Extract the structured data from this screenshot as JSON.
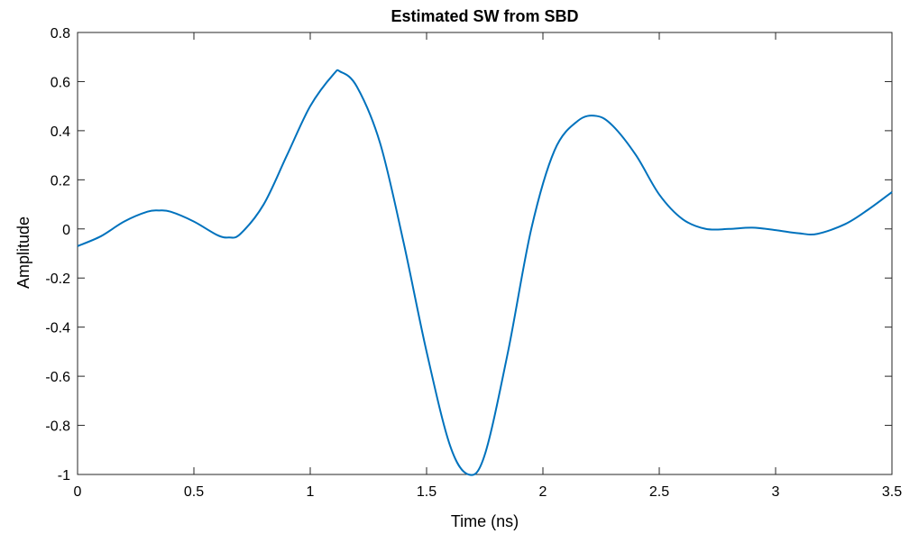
{
  "chart_data": {
    "type": "line",
    "title": "Estimated SW from SBD",
    "xlabel": "Time (ns)",
    "ylabel": "Amplitude",
    "xlim": [
      0,
      3.5
    ],
    "ylim": [
      -1,
      0.8
    ],
    "xticks": [
      0,
      0.5,
      1,
      1.5,
      2,
      2.5,
      3,
      3.5
    ],
    "xtick_labels": [
      "0",
      "0.5",
      "1",
      "1.5",
      "2",
      "2.5",
      "3",
      "3.5"
    ],
    "yticks": [
      -1,
      -0.8,
      -0.6,
      -0.4,
      -0.2,
      0,
      0.2,
      0.4,
      0.6,
      0.8
    ],
    "ytick_labels": [
      "-1",
      "-0.8",
      "-0.6",
      "-0.4",
      "-0.2",
      "0",
      "0.2",
      "0.4",
      "0.6",
      "0.8"
    ],
    "grid": false,
    "line_color": "#0072BD",
    "series": [
      {
        "x": [
          0,
          0.1,
          0.2,
          0.3,
          0.35,
          0.4,
          0.5,
          0.6,
          0.65,
          0.7,
          0.8,
          0.9,
          1.0,
          1.1,
          1.13,
          1.2,
          1.3,
          1.4,
          1.5,
          1.6,
          1.68,
          1.75,
          1.85,
          1.95,
          2.05,
          2.15,
          2.23,
          2.3,
          2.4,
          2.5,
          2.6,
          2.7,
          2.8,
          2.9,
          3.0,
          3.1,
          3.18,
          3.3,
          3.4,
          3.5
        ],
        "y": [
          -0.07,
          -0.03,
          0.03,
          0.07,
          0.075,
          0.07,
          0.03,
          -0.025,
          -0.035,
          -0.02,
          0.1,
          0.3,
          0.5,
          0.63,
          0.64,
          0.58,
          0.35,
          -0.05,
          -0.5,
          -0.88,
          -1.0,
          -0.92,
          -0.5,
          0.0,
          0.32,
          0.44,
          0.46,
          0.42,
          0.3,
          0.14,
          0.04,
          0.0,
          0.0,
          0.005,
          -0.005,
          -0.018,
          -0.02,
          0.02,
          0.08,
          0.15
        ]
      }
    ]
  }
}
